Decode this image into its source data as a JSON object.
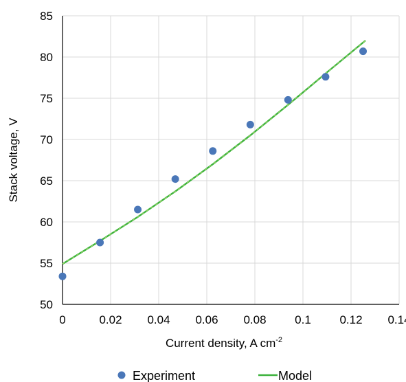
{
  "chart_data": {
    "type": "scatter",
    "title": "",
    "xlabel": "Current density, A cm",
    "xlabel_superscript": "-2",
    "ylabel": "Stack voltage,  V",
    "xlim": [
      0,
      0.14
    ],
    "ylim": [
      50,
      85
    ],
    "x_ticks": [
      "0",
      "0.02",
      "0.04",
      "0.06",
      "0.08",
      "0.1",
      "0.12",
      "0.14"
    ],
    "y_ticks": [
      "50",
      "55",
      "60",
      "65",
      "70",
      "75",
      "80",
      "85"
    ],
    "grid": true,
    "legend_position": "bottom",
    "series": [
      {
        "name": "Experiment",
        "kind": "markers",
        "color": "#4a77b8",
        "points": [
          {
            "x": 0.0,
            "y": 53.4
          },
          {
            "x": 0.0156,
            "y": 57.5
          },
          {
            "x": 0.0313,
            "y": 61.5
          },
          {
            "x": 0.0469,
            "y": 65.2
          },
          {
            "x": 0.0625,
            "y": 68.6
          },
          {
            "x": 0.0781,
            "y": 71.8
          },
          {
            "x": 0.0938,
            "y": 74.8
          },
          {
            "x": 0.1094,
            "y": 77.6
          },
          {
            "x": 0.125,
            "y": 80.7
          }
        ]
      },
      {
        "name": "Model",
        "kind": "line",
        "color": "#3cb23c",
        "points": [
          {
            "x": 0.0,
            "y": 54.9
          },
          {
            "x": 0.0156,
            "y": 57.7
          },
          {
            "x": 0.0313,
            "y": 60.6
          },
          {
            "x": 0.0469,
            "y": 63.7
          },
          {
            "x": 0.0625,
            "y": 67.0
          },
          {
            "x": 0.0781,
            "y": 70.5
          },
          {
            "x": 0.0938,
            "y": 74.2
          },
          {
            "x": 0.1094,
            "y": 78.0
          },
          {
            "x": 0.126,
            "y": 82.0
          }
        ]
      }
    ]
  }
}
